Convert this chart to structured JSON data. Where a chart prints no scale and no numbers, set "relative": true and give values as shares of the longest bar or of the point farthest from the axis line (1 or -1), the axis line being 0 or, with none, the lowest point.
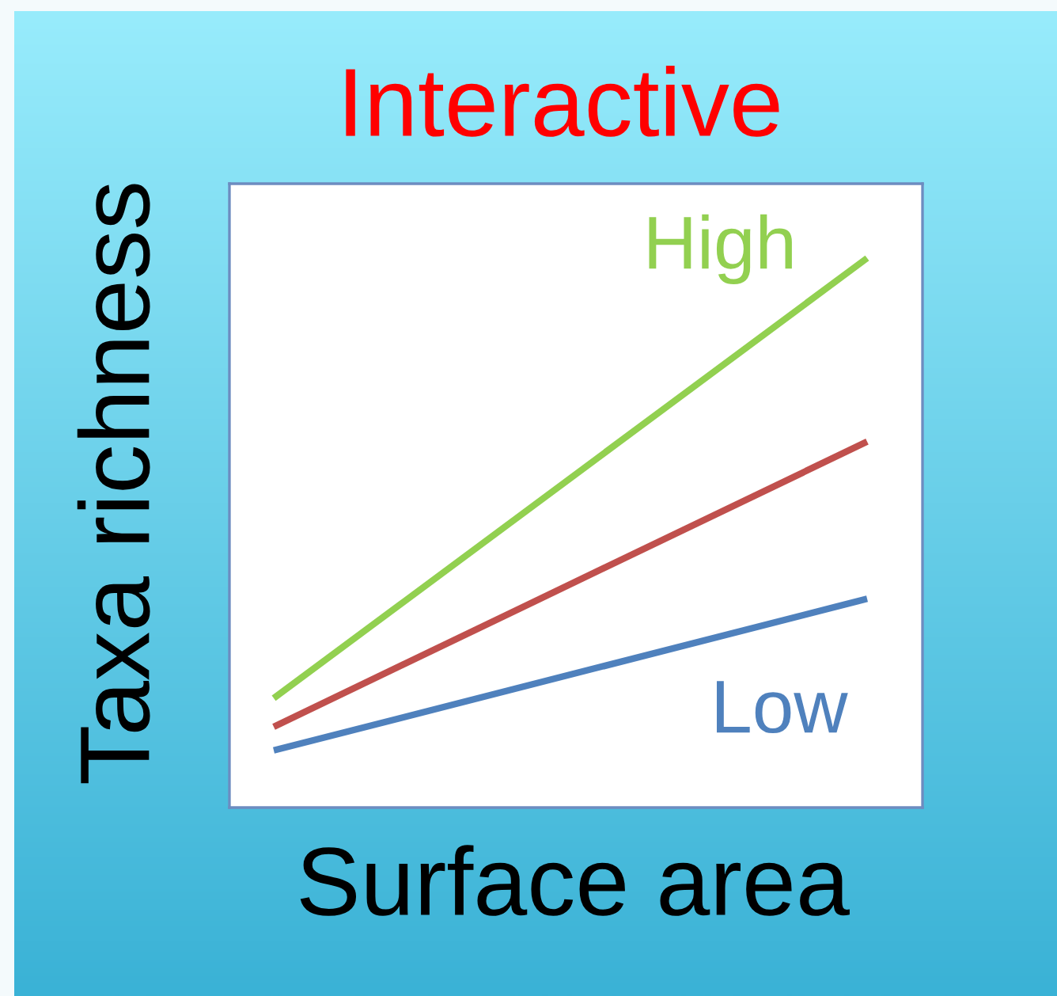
{
  "chart_data": {
    "type": "line",
    "title": "Interactive",
    "xlabel": "Surface area",
    "ylabel": "Taxa richness",
    "relative": true,
    "categories": [
      null,
      null
    ],
    "series": [
      {
        "name": "High",
        "color": "#92d050",
        "values": [
          0.199,
          1.0
        ]
      },
      {
        "color": "#c0504d",
        "values": [
          0.147,
          0.666
        ]
      },
      {
        "name": "Low",
        "color": "#4f81bd",
        "values": [
          0.104,
          0.38
        ]
      }
    ]
  }
}
